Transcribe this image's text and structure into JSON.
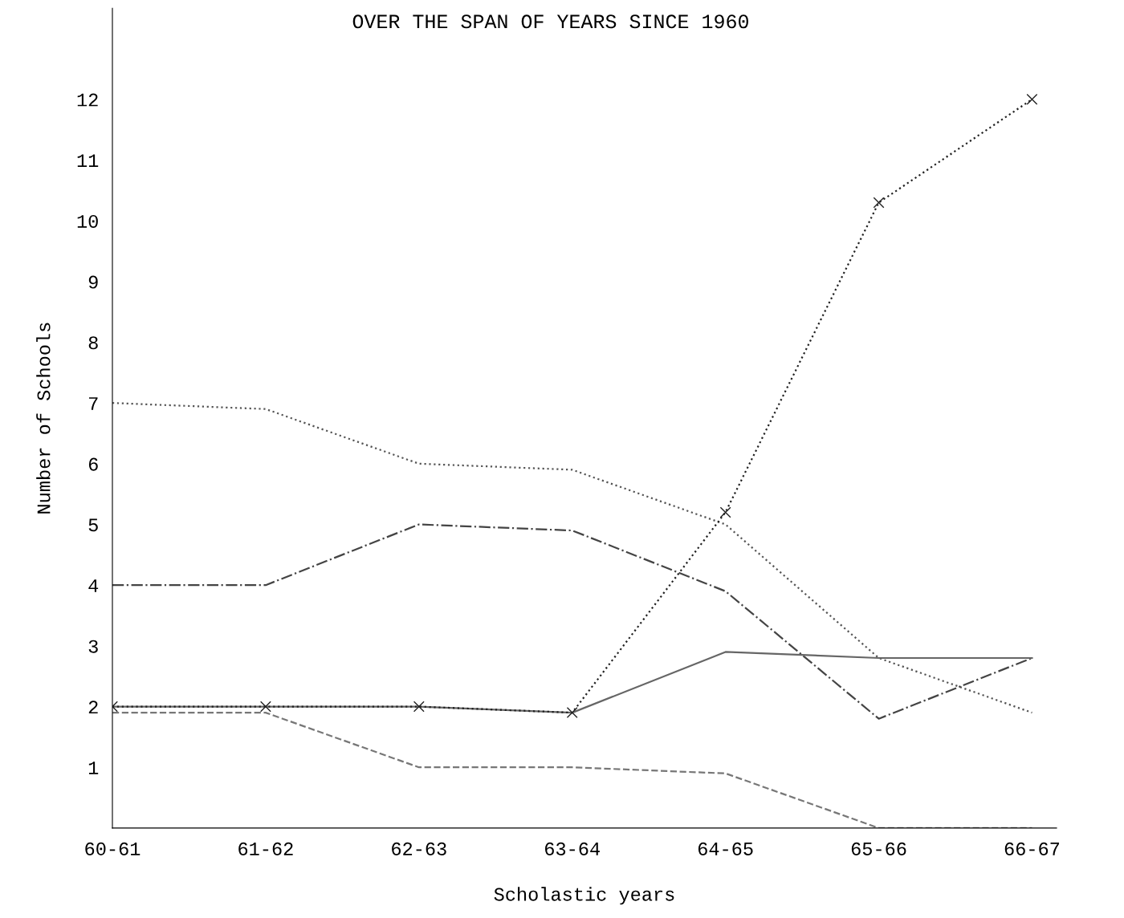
{
  "chart_data": {
    "type": "line",
    "title": "OVER THE SPAN OF YEARS SINCE 1960",
    "xlabel": "Scholastic years",
    "ylabel": "Number of Schools",
    "categories": [
      "60-61",
      "61-62",
      "62-63",
      "63-64",
      "64-65",
      "65-66",
      "66-67"
    ],
    "ylim": [
      0,
      13.5
    ],
    "yticks": [
      1,
      2,
      3,
      4,
      5,
      6,
      7,
      8,
      9,
      10,
      11,
      12
    ],
    "grid": false,
    "legend": false,
    "series": [
      {
        "color": "#555555",
        "line_style": "dotted",
        "values": [
          7,
          6.9,
          6,
          5.9,
          5,
          2.8,
          1.9
        ]
      },
      {
        "color": "#444444",
        "line_style": "dashdot",
        "values": [
          4,
          4,
          5,
          4.9,
          3.9,
          1.8,
          2.8
        ]
      },
      {
        "color": "#666666",
        "line_style": "solid",
        "values": [
          2,
          2,
          2,
          1.9,
          2.9,
          2.8,
          2.8
        ]
      },
      {
        "color": "#222222",
        "line_style": "dotted",
        "marker": "cross",
        "values": [
          2,
          2,
          2,
          1.9,
          5.2,
          10.3,
          12
        ]
      },
      {
        "color": "#777777",
        "line_style": "dashed",
        "values": [
          1.9,
          1.9,
          1,
          1,
          0.9,
          0,
          0
        ]
      }
    ]
  }
}
